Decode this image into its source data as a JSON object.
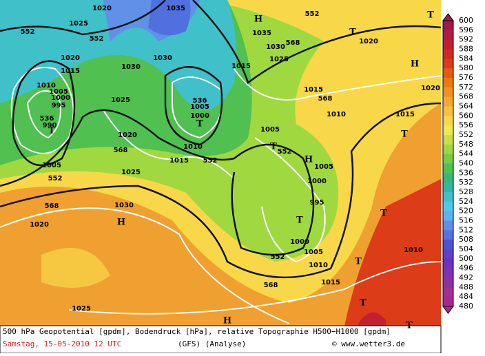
{
  "footer": {
    "line1": "500 hPa Geopotential [gpdm], Bodendruck [hPa], relative Topographie H500−H1000 [gpdm]",
    "date": "Samstag, 15-05-2010  12 UTC",
    "model": "(GFS)  (Analyse)",
    "credit": "© www.wetter3.de"
  },
  "legend": {
    "values": [
      600,
      596,
      592,
      588,
      584,
      580,
      576,
      572,
      568,
      564,
      560,
      556,
      552,
      548,
      544,
      540,
      536,
      532,
      528,
      524,
      520,
      516,
      512,
      508,
      504,
      500,
      496,
      492,
      488,
      484,
      480
    ],
    "colors": [
      "#a01848",
      "#b01c40",
      "#c02030",
      "#d02820",
      "#dc3c18",
      "#e45a10",
      "#ec7810",
      "#f09020",
      "#f4a830",
      "#f8c040",
      "#f8d848",
      "#f0e850",
      "#c8e048",
      "#a0d840",
      "#78cc40",
      "#50c050",
      "#38b878",
      "#30b8a0",
      "#40c0c8",
      "#50c8e8",
      "#60b0f0",
      "#6090e8",
      "#5870e0",
      "#5050d0",
      "#6040c8",
      "#7030c0",
      "#8030b0",
      "#9030a0",
      "#a03098",
      "#a82890"
    ]
  },
  "map": {
    "labels": [
      "1020",
      "1035",
      "552",
      "552",
      "552",
      "1025",
      "1030",
      "1030",
      "1035",
      "1030",
      "568",
      "1025",
      "1015",
      "1020",
      "1020",
      "1015",
      "1010",
      "1005",
      "1000",
      "995",
      "536",
      "990",
      "536",
      "1005",
      "1000",
      "1025",
      "1020",
      "568",
      "1010",
      "1015",
      "552",
      "1005",
      "552",
      "568",
      "1030",
      "1020",
      "1025",
      "1015",
      "568",
      "1010",
      "1015",
      "1020",
      "1005",
      "552",
      "1005",
      "1000",
      "995",
      "1000",
      "1005",
      "1010",
      "552",
      "568",
      "1015",
      "1025",
      "1010"
    ],
    "centers": [
      "T",
      "T",
      "T",
      "T",
      "T",
      "T",
      "T",
      "T",
      "T",
      "T",
      "T",
      "H",
      "H",
      "H",
      "H",
      "H"
    ]
  }
}
